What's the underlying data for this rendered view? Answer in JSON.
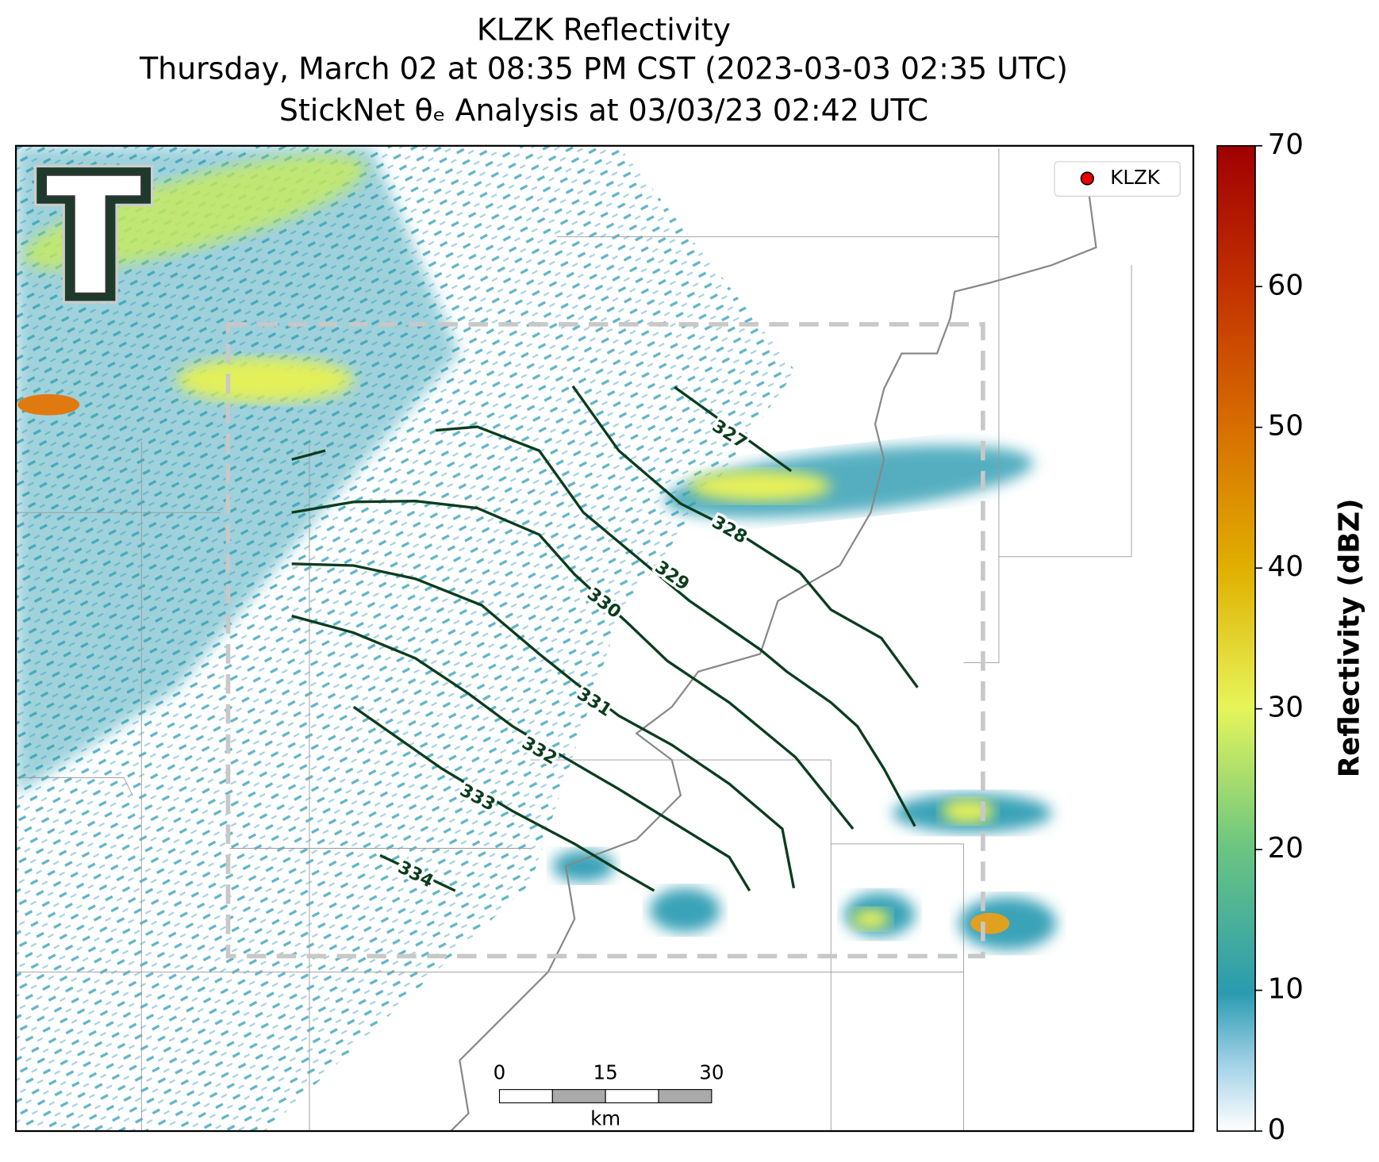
{
  "title": [
    "KLZK Reflectivity",
    "Thursday, March 02 at 08:35 PM CST (2023-03-03 02:35 UTC)",
    "StickNet θₑ Analysis at 03/03/23 02:42 UTC"
  ],
  "legend": "KLZK",
  "colorbar": {
    "label": "Reflectivity (dBZ)",
    "lim": [
      0,
      70
    ],
    "ticks": [
      0,
      10,
      20,
      30,
      40,
      50,
      60,
      70
    ]
  },
  "contours": [
    327,
    328,
    329,
    330,
    331,
    332,
    333,
    334
  ],
  "scale_bar": {
    "ticks": [
      0,
      15,
      30
    ],
    "unit": "km"
  }
}
